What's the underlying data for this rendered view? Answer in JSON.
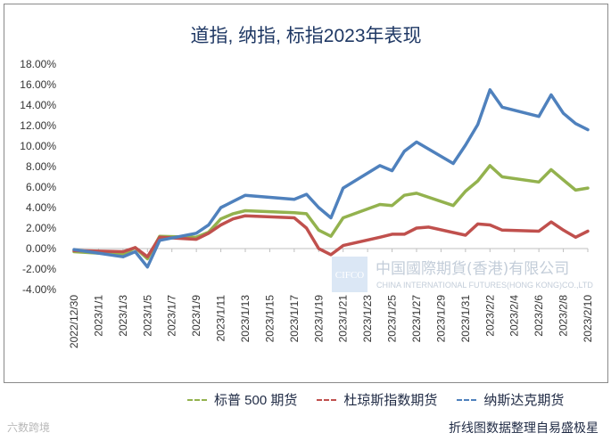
{
  "chart_data": {
    "type": "line",
    "title": "道指, 纳指, 标指2023年表现",
    "x": [
      "2022/12/30",
      "2023/1/1",
      "2023/1/3",
      "2023/1/5",
      "2023/1/7",
      "2023/1/9",
      "2023/1/11",
      "2023/1/13",
      "2023/1/15",
      "2023/1/17",
      "2023/1/19",
      "2023/1/21",
      "2023/1/23",
      "2023/1/25",
      "2023/1/27",
      "2023/1/29",
      "2023/1/31",
      "2023/2/2",
      "2023/2/4",
      "2023/2/6",
      "2023/2/8",
      "2023/2/10"
    ],
    "y_ticks": [
      "18.00%",
      "16.00%",
      "14.00%",
      "12.00%",
      "10.00%",
      "8.00%",
      "6.00%",
      "4.00%",
      "2.00%",
      "0.00%",
      "-2.00%",
      "-4.00%"
    ],
    "ylim": [
      -4,
      18
    ],
    "grid": false,
    "legend_position": "bottom",
    "series": [
      {
        "name": "标普 500 期货",
        "color": "#93b24e",
        "points": [
          [
            "2022/12/30",
            -0.3
          ],
          [
            "2023/1/3",
            -0.6
          ],
          [
            "2023/1/4",
            0.1
          ],
          [
            "2023/1/5",
            -1.0
          ],
          [
            "2023/1/6",
            1.2
          ],
          [
            "2023/1/9",
            1.1
          ],
          [
            "2023/1/10",
            1.6
          ],
          [
            "2023/1/11",
            2.9
          ],
          [
            "2023/1/12",
            3.4
          ],
          [
            "2023/1/13",
            3.7
          ],
          [
            "2023/1/17",
            3.5
          ],
          [
            "2023/1/18",
            3.4
          ],
          [
            "2023/1/19",
            1.8
          ],
          [
            "2023/1/20",
            1.2
          ],
          [
            "2023/1/21",
            3.0
          ],
          [
            "2023/1/24",
            4.3
          ],
          [
            "2023/1/25",
            4.2
          ],
          [
            "2023/1/26",
            5.2
          ],
          [
            "2023/1/27",
            5.4
          ],
          [
            "2023/1/30",
            4.2
          ],
          [
            "2023/1/31",
            5.6
          ],
          [
            "2023/2/1",
            6.6
          ],
          [
            "2023/2/2",
            8.1
          ],
          [
            "2023/2/3",
            7.0
          ],
          [
            "2023/2/6",
            6.5
          ],
          [
            "2023/2/7",
            7.7
          ],
          [
            "2023/2/8",
            6.7
          ],
          [
            "2023/2/9",
            5.7
          ],
          [
            "2023/2/10",
            5.9
          ]
        ]
      },
      {
        "name": "杜琼斯指数期货",
        "color": "#c0504d",
        "points": [
          [
            "2022/12/30",
            -0.2
          ],
          [
            "2023/1/3",
            -0.3
          ],
          [
            "2023/1/4",
            0.1
          ],
          [
            "2023/1/5",
            -0.8
          ],
          [
            "2023/1/6",
            1.1
          ],
          [
            "2023/1/9",
            0.9
          ],
          [
            "2023/1/10",
            1.5
          ],
          [
            "2023/1/11",
            2.3
          ],
          [
            "2023/1/12",
            2.9
          ],
          [
            "2023/1/13",
            3.2
          ],
          [
            "2023/1/17",
            3.0
          ],
          [
            "2023/1/18",
            2.0
          ],
          [
            "2023/1/19",
            0.0
          ],
          [
            "2023/1/20",
            -0.6
          ],
          [
            "2023/1/21",
            0.3
          ],
          [
            "2023/1/24",
            1.1
          ],
          [
            "2023/1/25",
            1.4
          ],
          [
            "2023/1/26",
            1.4
          ],
          [
            "2023/1/27",
            2.0
          ],
          [
            "2023/1/28",
            2.1
          ],
          [
            "2023/1/31",
            1.3
          ],
          [
            "2023/2/1",
            2.4
          ],
          [
            "2023/2/2",
            2.3
          ],
          [
            "2023/2/3",
            1.8
          ],
          [
            "2023/2/6",
            1.7
          ],
          [
            "2023/2/7",
            2.6
          ],
          [
            "2023/2/8",
            1.8
          ],
          [
            "2023/2/9",
            1.1
          ],
          [
            "2023/2/10",
            1.7
          ]
        ]
      },
      {
        "name": "纳斯达克期货",
        "color": "#4f81bd",
        "points": [
          [
            "2022/12/30",
            -0.1
          ],
          [
            "2023/1/3",
            -0.8
          ],
          [
            "2023/1/4",
            -0.3
          ],
          [
            "2023/1/5",
            -1.8
          ],
          [
            "2023/1/6",
            0.8
          ],
          [
            "2023/1/9",
            1.5
          ],
          [
            "2023/1/10",
            2.3
          ],
          [
            "2023/1/11",
            4.0
          ],
          [
            "2023/1/12",
            4.6
          ],
          [
            "2023/1/13",
            5.2
          ],
          [
            "2023/1/17",
            4.8
          ],
          [
            "2023/1/18",
            5.3
          ],
          [
            "2023/1/19",
            4.0
          ],
          [
            "2023/1/20",
            3.0
          ],
          [
            "2023/1/21",
            5.9
          ],
          [
            "2023/1/24",
            8.1
          ],
          [
            "2023/1/25",
            7.6
          ],
          [
            "2023/1/26",
            9.5
          ],
          [
            "2023/1/27",
            10.4
          ],
          [
            "2023/1/30",
            8.3
          ],
          [
            "2023/1/31",
            10.1
          ],
          [
            "2023/2/1",
            12.1
          ],
          [
            "2023/2/2",
            15.5
          ],
          [
            "2023/2/3",
            13.8
          ],
          [
            "2023/2/6",
            12.9
          ],
          [
            "2023/2/7",
            15.0
          ],
          [
            "2023/2/8",
            13.2
          ],
          [
            "2023/2/9",
            12.2
          ],
          [
            "2023/2/10",
            11.6
          ]
        ]
      }
    ]
  },
  "watermark": {
    "text_cn": "中国國際期貨(香港)有限公司",
    "text_en": "CHINA INTERNATIONAL FUTURES(HONG KONG)CO.,LTD",
    "logo_text": "CIFCO"
  },
  "source": "折线图数据整理自易盛极星",
  "corner_mark": "六数跨境"
}
